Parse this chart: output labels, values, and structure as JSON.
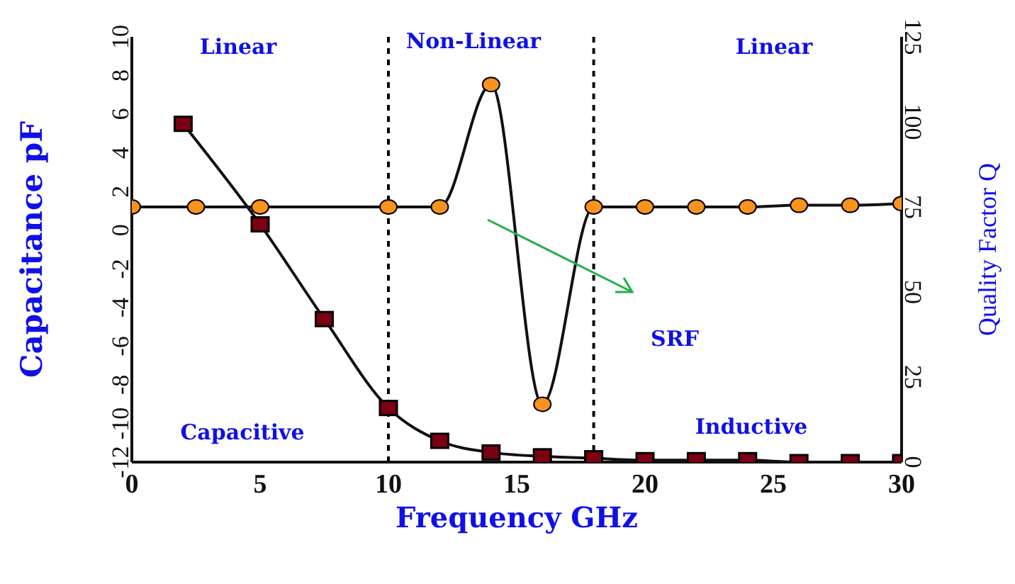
{
  "chart_data": {
    "type": "line",
    "xlabel": "Frequency  GHz",
    "ylabel": "Capacitance pF",
    "y2label": "Quality Factor  Q",
    "xlim": [
      0,
      30
    ],
    "xticks": [
      0,
      5,
      10,
      15,
      20,
      25,
      30
    ],
    "ylim": [
      -12,
      10
    ],
    "yticks": [
      -12,
      -10,
      -8,
      -6,
      -4,
      -2,
      0,
      2,
      4,
      6,
      8,
      10
    ],
    "y2lim": [
      0,
      125
    ],
    "y2ticks": [
      0,
      25,
      50,
      75,
      100,
      125
    ],
    "series": [
      {
        "color": "#7b0012",
        "marker": "square",
        "x": [
          2,
          5,
          7.5,
          10,
          12,
          14,
          16,
          18,
          20,
          22,
          24,
          26,
          28,
          30
        ],
        "values": [
          5.5,
          0.3,
          -4.6,
          -9.2,
          -10.9,
          -11.5,
          -11.7,
          -11.8,
          -11.9,
          -11.9,
          -11.9,
          -12,
          -12,
          -12
        ]
      },
      {
        "color": "#f7931e",
        "axis": "y2",
        "x": [
          0,
          2.5,
          5,
          10,
          12,
          14,
          16,
          18,
          20,
          22,
          24,
          26,
          28,
          30
        ],
        "values": [
          75,
          75,
          75,
          75,
          75,
          111,
          17,
          75,
          75,
          75,
          75,
          75.5,
          75.5,
          76
        ]
      }
    ],
    "ref_lines": [
      {
        "axis": "x",
        "value": 10,
        "color": "#000000",
        "line_style": "dashed"
      },
      {
        "axis": "x",
        "value": 18,
        "color": "#000000",
        "line_style": "dashed"
      }
    ],
    "annotations": [
      "Linear",
      "Non-Linear",
      "Linear",
      "Capacitive",
      "Inductive",
      "SRF"
    ],
    "marker": "circle"
  }
}
